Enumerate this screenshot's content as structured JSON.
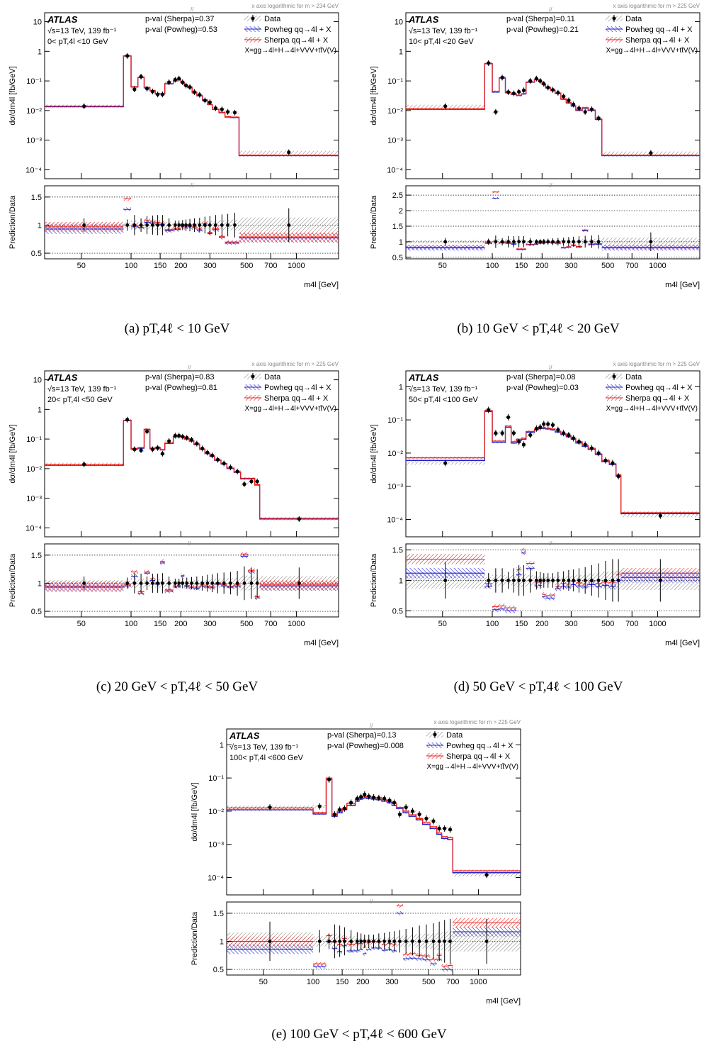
{
  "figure": {
    "experiment": "ATLAS",
    "energy_lumi": "√s=13 TeV, 139 fb⁻¹",
    "axis_note": "x axis logarithmic for m",
    "y_label": "dσ/dm4l [fb/GeV]",
    "ratio_label": "Prediction/Data",
    "x_label": "m4l [GeV]",
    "legend": {
      "data": "Data",
      "powheg": "Powheg qq→4l + X",
      "sherpa": "Sherpa qq→4l + X",
      "x_def": "X=gg→4l+H→4l+VVV+tt̄V(V)"
    },
    "colors": {
      "data": "#000000",
      "powheg": "#1f1fd0",
      "sherpa": "#e8201c",
      "band": "#8c8c8c"
    }
  },
  "chart_data": [
    {
      "type": "line",
      "caption": "(a)  pT,4ℓ < 10 GeV",
      "range_label": "0< pT,4l <10 GeV",
      "pval_sherpa": "p-val (Sherpa)=0.37",
      "pval_powheg": "p-val (Powheg)=0.53",
      "log_threshold": "> 234 GeV",
      "ylim": [
        5e-05,
        20
      ],
      "yticks": [
        "10⁻⁴",
        "10⁻³",
        "10⁻²",
        "10⁻¹",
        "1",
        "10"
      ],
      "rlim": [
        0.4,
        1.7
      ],
      "rticks": [
        0.5,
        1,
        1.5
      ],
      "xticks": [
        50,
        100,
        150,
        200,
        300,
        500,
        700,
        1000
      ],
      "edges": [
        30,
        90,
        100,
        110,
        120,
        130,
        140,
        150,
        160,
        180,
        190,
        200,
        210,
        220,
        234,
        250,
        270,
        290,
        310,
        340,
        370,
        400,
        450,
        1800
      ],
      "data": [
        0.014,
        0.7,
        0.052,
        0.14,
        0.055,
        0.044,
        0.035,
        0.035,
        0.09,
        0.11,
        0.12,
        0.09,
        0.07,
        0.062,
        0.042,
        0.034,
        0.022,
        0.019,
        0.012,
        0.011,
        0.009,
        0.0085,
        0.00039
      ],
      "powheg": [
        0.0135,
        0.69,
        0.062,
        0.13,
        0.058,
        0.046,
        0.036,
        0.036,
        0.08,
        0.1,
        0.11,
        0.088,
        0.068,
        0.06,
        0.04,
        0.031,
        0.022,
        0.016,
        0.011,
        0.0085,
        0.006,
        0.0058,
        0.0003
      ],
      "sherpa": [
        0.014,
        0.7,
        0.064,
        0.133,
        0.06,
        0.047,
        0.037,
        0.037,
        0.082,
        0.102,
        0.112,
        0.09,
        0.07,
        0.062,
        0.041,
        0.032,
        0.023,
        0.016,
        0.011,
        0.0087,
        0.0062,
        0.006,
        0.00031
      ],
      "ratio_data_err": [
        0.12,
        0.1,
        0.18,
        0.12,
        0.16,
        0.17,
        0.18,
        0.18,
        0.12,
        0.08,
        0.08,
        0.09,
        0.1,
        0.11,
        0.12,
        0.13,
        0.15,
        0.16,
        0.18,
        0.19,
        0.2,
        0.22,
        0.3
      ],
      "ratio_powheg": [
        0.93,
        1.28,
        0.97,
        0.96,
        1.05,
        1.04,
        1.02,
        1.01,
        0.9,
        0.92,
        0.92,
        0.97,
        0.95,
        0.97,
        0.95,
        0.91,
        1.0,
        0.85,
        0.92,
        0.78,
        0.68,
        0.68,
        0.77
      ],
      "ratio_sherpa": [
        0.97,
        1.47,
        1.0,
        0.99,
        1.08,
        1.07,
        1.05,
        1.04,
        0.92,
        0.94,
        0.94,
        0.99,
        0.97,
        0.99,
        0.97,
        0.93,
        1.03,
        0.87,
        0.94,
        0.8,
        0.7,
        0.7,
        0.79
      ]
    },
    {
      "type": "line",
      "caption": "(b)  10 GeV < pT,4ℓ < 20 GeV",
      "range_label": "10< pT,4l <20 GeV",
      "pval_sherpa": "p-val (Sherpa)=0.11",
      "pval_powheg": "p-val (Powheg)=0.21",
      "log_threshold": "> 225 GeV",
      "ylim": [
        5e-05,
        20
      ],
      "yticks": [
        "10⁻⁴",
        "10⁻³",
        "10⁻²",
        "10⁻¹",
        "1",
        "10"
      ],
      "rlim": [
        0.45,
        2.8
      ],
      "rticks": [
        0.5,
        1,
        1.5,
        2,
        2.5
      ],
      "xticks": [
        50,
        100,
        150,
        200,
        300,
        500,
        700,
        1000
      ],
      "edges": [
        30,
        90,
        100,
        110,
        120,
        130,
        140,
        150,
        160,
        180,
        190,
        200,
        210,
        225,
        240,
        260,
        280,
        300,
        320,
        350,
        380,
        420,
        460,
        1800
      ],
      "data": [
        0.014,
        0.4,
        0.009,
        0.13,
        0.042,
        0.038,
        0.043,
        0.048,
        0.1,
        0.12,
        0.1,
        0.08,
        0.06,
        0.05,
        0.04,
        0.03,
        0.022,
        0.016,
        0.012,
        0.009,
        0.011,
        0.0055,
        0.00037
      ],
      "powheg": [
        0.011,
        0.38,
        0.042,
        0.125,
        0.04,
        0.035,
        0.032,
        0.036,
        0.09,
        0.11,
        0.095,
        0.076,
        0.058,
        0.048,
        0.038,
        0.024,
        0.018,
        0.014,
        0.01,
        0.012,
        0.01,
        0.005,
        0.0003
      ],
      "sherpa": [
        0.0115,
        0.39,
        0.044,
        0.128,
        0.041,
        0.036,
        0.033,
        0.037,
        0.092,
        0.112,
        0.097,
        0.078,
        0.06,
        0.049,
        0.039,
        0.025,
        0.019,
        0.0145,
        0.0105,
        0.0125,
        0.0105,
        0.0052,
        0.00031
      ],
      "ratio_data_err": [
        0.12,
        0.1,
        0.2,
        0.12,
        0.18,
        0.18,
        0.18,
        0.18,
        0.12,
        0.08,
        0.08,
        0.09,
        0.1,
        0.11,
        0.12,
        0.13,
        0.15,
        0.16,
        0.18,
        0.19,
        0.2,
        0.22,
        0.3
      ],
      "ratio_powheg": [
        0.8,
        0.95,
        2.4,
        0.96,
        0.95,
        0.92,
        0.75,
        0.75,
        0.9,
        0.92,
        0.95,
        0.95,
        0.97,
        0.96,
        0.95,
        0.8,
        0.82,
        0.88,
        0.83,
        1.35,
        0.91,
        0.92,
        0.8
      ],
      "ratio_sherpa": [
        0.82,
        0.97,
        2.6,
        0.98,
        0.97,
        0.94,
        0.77,
        0.77,
        0.92,
        0.94,
        0.97,
        0.97,
        0.99,
        0.98,
        0.97,
        0.82,
        0.84,
        0.9,
        0.85,
        1.38,
        0.93,
        0.94,
        0.82
      ]
    },
    {
      "type": "line",
      "caption": "(c)  20 GeV < pT,4ℓ < 50 GeV",
      "range_label": "20< pT,4l <50 GeV",
      "pval_sherpa": "p-val (Sherpa)=0.83",
      "pval_powheg": "p-val (Powheg)=0.81",
      "log_threshold": "> 225 GeV",
      "ylim": [
        5e-05,
        20
      ],
      "yticks": [
        "10⁻⁴",
        "10⁻³",
        "10⁻²",
        "10⁻¹",
        "1",
        "10"
      ],
      "rlim": [
        0.4,
        1.7
      ],
      "rticks": [
        0.5,
        1,
        1.5
      ],
      "xticks": [
        50,
        100,
        150,
        200,
        300,
        500,
        700,
        1000
      ],
      "edges": [
        30,
        90,
        100,
        110,
        120,
        130,
        140,
        150,
        160,
        180,
        190,
        200,
        210,
        225,
        240,
        260,
        280,
        300,
        320,
        350,
        380,
        420,
        460,
        510,
        560,
        600,
        1800
      ],
      "data": [
        0.014,
        0.45,
        0.045,
        0.042,
        0.18,
        0.045,
        0.05,
        0.032,
        0.085,
        0.13,
        0.13,
        0.12,
        0.11,
        0.095,
        0.07,
        0.048,
        0.035,
        0.028,
        0.02,
        0.015,
        0.011,
        0.008,
        0.003,
        0.0037,
        0.0037,
        0.0002
      ],
      "powheg": [
        0.013,
        0.42,
        0.046,
        0.049,
        0.21,
        0.047,
        0.05,
        0.043,
        0.071,
        0.118,
        0.12,
        0.12,
        0.1,
        0.085,
        0.065,
        0.045,
        0.032,
        0.026,
        0.019,
        0.0145,
        0.01,
        0.0075,
        0.0045,
        0.0045,
        0.0028,
        0.0002
      ],
      "sherpa": [
        0.0135,
        0.43,
        0.048,
        0.051,
        0.215,
        0.049,
        0.052,
        0.044,
        0.073,
        0.121,
        0.123,
        0.123,
        0.103,
        0.087,
        0.067,
        0.046,
        0.033,
        0.027,
        0.0195,
        0.015,
        0.0105,
        0.0078,
        0.0047,
        0.0047,
        0.0029,
        0.00021
      ],
      "ratio_data_err": [
        0.12,
        0.1,
        0.18,
        0.17,
        0.12,
        0.17,
        0.17,
        0.18,
        0.12,
        0.08,
        0.08,
        0.09,
        0.1,
        0.11,
        0.12,
        0.13,
        0.15,
        0.16,
        0.18,
        0.19,
        0.2,
        0.22,
        0.3,
        0.28,
        0.25,
        0.28
      ],
      "ratio_powheg": [
        0.93,
        0.95,
        1.12,
        0.82,
        1.18,
        1.05,
        0.98,
        1.36,
        0.86,
        0.93,
        0.94,
        1.12,
        0.94,
        0.92,
        0.91,
        0.95,
        0.93,
        0.92,
        0.98,
        0.95,
        0.93,
        0.95,
        1.48,
        1.2,
        0.74,
        0.95
      ],
      "ratio_sherpa": [
        0.95,
        0.97,
        1.2,
        0.85,
        1.2,
        1.08,
        1.0,
        1.39,
        0.88,
        0.95,
        0.96,
        1.14,
        0.96,
        0.94,
        0.93,
        0.97,
        0.95,
        0.94,
        1.0,
        0.97,
        0.95,
        0.97,
        1.52,
        1.23,
        0.76,
        0.97
      ]
    },
    {
      "type": "line",
      "caption": "(d)  50 GeV < pT,4ℓ < 100 GeV",
      "range_label": "50< pT,4l <100 GeV",
      "pval_sherpa": "p-val (Sherpa)=0.08",
      "pval_powheg": "p-val (Powheg)=0.03",
      "log_threshold": "> 225 GeV",
      "ylim": [
        3e-05,
        3
      ],
      "yticks": [
        "10⁻⁴",
        "10⁻³",
        "10⁻²",
        "10⁻¹",
        "1"
      ],
      "rlim": [
        0.4,
        1.6
      ],
      "rticks": [
        0.5,
        1,
        1.5
      ],
      "xticks": [
        50,
        100,
        150,
        200,
        300,
        500,
        700,
        1000
      ],
      "edges": [
        30,
        90,
        100,
        110,
        120,
        130,
        140,
        150,
        160,
        180,
        190,
        200,
        210,
        225,
        240,
        260,
        280,
        300,
        320,
        350,
        380,
        420,
        460,
        510,
        560,
        600,
        1800
      ],
      "data": [
        0.005,
        0.2,
        0.04,
        0.04,
        0.12,
        0.04,
        0.022,
        0.018,
        0.035,
        0.055,
        0.06,
        0.075,
        0.075,
        0.07,
        0.05,
        0.04,
        0.035,
        0.028,
        0.022,
        0.018,
        0.014,
        0.01,
        0.006,
        0.005,
        0.002,
        0.00013
      ],
      "powheg": [
        0.006,
        0.18,
        0.021,
        0.021,
        0.06,
        0.02,
        0.024,
        0.026,
        0.042,
        0.05,
        0.055,
        0.055,
        0.053,
        0.05,
        0.043,
        0.036,
        0.031,
        0.026,
        0.02,
        0.016,
        0.013,
        0.009,
        0.0055,
        0.0045,
        0.002,
        0.00015
      ],
      "sherpa": [
        0.0072,
        0.19,
        0.023,
        0.023,
        0.065,
        0.022,
        0.026,
        0.028,
        0.045,
        0.053,
        0.058,
        0.058,
        0.056,
        0.053,
        0.045,
        0.038,
        0.033,
        0.028,
        0.022,
        0.017,
        0.014,
        0.0095,
        0.006,
        0.0048,
        0.0022,
        0.00016
      ],
      "ratio_data_err": [
        0.3,
        0.12,
        0.2,
        0.2,
        0.14,
        0.2,
        0.25,
        0.25,
        0.2,
        0.15,
        0.14,
        0.12,
        0.12,
        0.12,
        0.14,
        0.15,
        0.17,
        0.18,
        0.2,
        0.22,
        0.25,
        0.28,
        0.32,
        0.35,
        0.35,
        0.35
      ],
      "ratio_powheg": [
        1.12,
        0.9,
        0.52,
        0.53,
        0.5,
        0.5,
        1.1,
        1.45,
        1.2,
        0.91,
        0.92,
        0.73,
        0.71,
        0.71,
        0.86,
        0.9,
        0.89,
        0.93,
        0.91,
        0.89,
        0.93,
        0.9,
        0.92,
        0.9,
        1.0,
        1.05
      ],
      "ratio_sherpa": [
        1.35,
        0.95,
        0.57,
        0.58,
        0.55,
        0.55,
        1.18,
        1.5,
        1.28,
        0.96,
        0.97,
        0.77,
        0.75,
        0.76,
        0.9,
        0.95,
        0.94,
        0.98,
        0.96,
        0.94,
        0.98,
        0.95,
        0.97,
        0.96,
        1.1,
        1.12
      ]
    },
    {
      "type": "line",
      "caption": "(e)  100 GeV < pT,4ℓ < 600 GeV",
      "range_label": "100< pT,4l <600 GeV",
      "pval_sherpa": "p-val (Sherpa)=0.13",
      "pval_powheg": "p-val (Powheg)=0.008",
      "log_threshold": "> 225 GeV",
      "ylim": [
        3e-05,
        3
      ],
      "yticks": [
        "10⁻⁴",
        "10⁻³",
        "10⁻²",
        "10⁻¹",
        "1"
      ],
      "rlim": [
        0.4,
        1.7
      ],
      "rticks": [
        0.5,
        1,
        1.5
      ],
      "xticks": [
        50,
        100,
        150,
        200,
        300,
        500,
        700,
        1000
      ],
      "edges": [
        30,
        100,
        120,
        130,
        140,
        150,
        160,
        180,
        190,
        200,
        210,
        225,
        240,
        260,
        280,
        300,
        320,
        350,
        380,
        420,
        460,
        510,
        560,
        600,
        650,
        700,
        1800
      ],
      "data": [
        0.013,
        0.014,
        0.09,
        0.008,
        0.011,
        0.012,
        0.018,
        0.024,
        0.027,
        0.032,
        0.028,
        0.026,
        0.025,
        0.024,
        0.021,
        0.018,
        0.008,
        0.013,
        0.01,
        0.008,
        0.006,
        0.005,
        0.003,
        0.003,
        0.0028,
        0.00012
      ],
      "powheg": [
        0.011,
        0.0082,
        0.09,
        0.007,
        0.009,
        0.011,
        0.015,
        0.02,
        0.023,
        0.025,
        0.024,
        0.023,
        0.022,
        0.02,
        0.018,
        0.015,
        0.012,
        0.009,
        0.007,
        0.0055,
        0.004,
        0.003,
        0.002,
        0.0015,
        0.0014,
        0.00014
      ],
      "sherpa": [
        0.0125,
        0.009,
        0.1,
        0.0078,
        0.01,
        0.012,
        0.017,
        0.023,
        0.026,
        0.028,
        0.027,
        0.026,
        0.025,
        0.022,
        0.02,
        0.017,
        0.013,
        0.01,
        0.0078,
        0.006,
        0.0045,
        0.0034,
        0.0022,
        0.0017,
        0.0016,
        0.00016
      ],
      "ratio_data_err": [
        0.35,
        0.2,
        0.14,
        0.3,
        0.28,
        0.25,
        0.2,
        0.16,
        0.14,
        0.12,
        0.12,
        0.12,
        0.14,
        0.15,
        0.17,
        0.18,
        0.2,
        0.22,
        0.25,
        0.28,
        0.3,
        0.32,
        0.35,
        0.38,
        0.4,
        0.4
      ],
      "ratio_powheg": [
        0.86,
        0.55,
        1.0,
        0.87,
        0.82,
        0.92,
        0.83,
        0.83,
        0.85,
        0.78,
        0.86,
        0.88,
        0.88,
        0.84,
        0.86,
        0.83,
        1.5,
        0.69,
        0.7,
        0.69,
        0.67,
        0.6,
        0.68,
        0.5,
        0.5,
        1.17
      ],
      "ratio_sherpa": [
        1.0,
        0.6,
        1.1,
        1.0,
        0.95,
        1.05,
        0.95,
        0.96,
        0.96,
        0.9,
        0.98,
        1.0,
        1.0,
        0.94,
        0.96,
        0.94,
        1.63,
        0.77,
        0.78,
        0.75,
        0.74,
        0.68,
        0.75,
        0.56,
        0.57,
        1.33
      ]
    }
  ]
}
